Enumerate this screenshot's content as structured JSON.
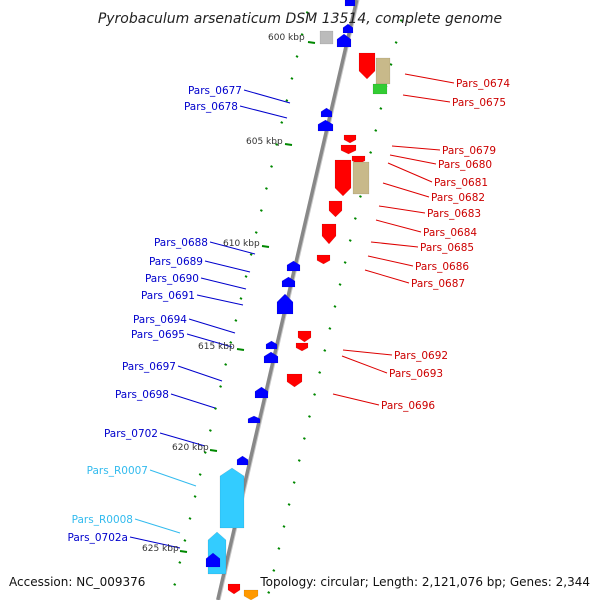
{
  "title": "Pyrobaculum arsenaticum DSM 13514, complete genome",
  "accession": "Accession: NC_009376",
  "topology": "Topology: circular; Length: 2,121,076 bp; Genes: 2,344",
  "colors": {
    "plus_gene": "#ff0000",
    "minus_gene": "#0000ff",
    "rna_gene": "#33ccff",
    "pseudo_gene": "#c8b98a",
    "green_gene": "#33cc33",
    "orange_gene": "#ff9900",
    "grey_gene": "#bbbbbb",
    "backbone": "#888888",
    "tick": "#008800"
  },
  "scale_labels": [
    "600 kbp",
    "605 kbp",
    "610 kbp",
    "615 kbp",
    "620 kbp",
    "625 kbp"
  ],
  "left_labels": [
    {
      "text": "Pars_0677",
      "kind": "minus"
    },
    {
      "text": "Pars_0678",
      "kind": "minus"
    },
    {
      "text": "Pars_0688",
      "kind": "minus"
    },
    {
      "text": "Pars_0689",
      "kind": "minus"
    },
    {
      "text": "Pars_0690",
      "kind": "minus"
    },
    {
      "text": "Pars_0691",
      "kind": "minus"
    },
    {
      "text": "Pars_0694",
      "kind": "minus"
    },
    {
      "text": "Pars_0695",
      "kind": "minus"
    },
    {
      "text": "Pars_0697",
      "kind": "minus"
    },
    {
      "text": "Pars_0698",
      "kind": "minus"
    },
    {
      "text": "Pars_0702",
      "kind": "minus"
    },
    {
      "text": "Pars_R0007",
      "kind": "rna"
    },
    {
      "text": "Pars_R0008",
      "kind": "rna"
    },
    {
      "text": "Pars_0702a",
      "kind": "minus"
    }
  ],
  "right_labels": [
    {
      "text": "Pars_0674",
      "kind": "plus"
    },
    {
      "text": "Pars_0675",
      "kind": "plus"
    },
    {
      "text": "Pars_0679",
      "kind": "plus"
    },
    {
      "text": "Pars_0680",
      "kind": "plus"
    },
    {
      "text": "Pars_0681",
      "kind": "plus"
    },
    {
      "text": "Pars_0682",
      "kind": "plus"
    },
    {
      "text": "Pars_0683",
      "kind": "plus"
    },
    {
      "text": "Pars_0684",
      "kind": "plus"
    },
    {
      "text": "Pars_0685",
      "kind": "plus"
    },
    {
      "text": "Pars_0686",
      "kind": "plus"
    },
    {
      "text": "Pars_0687",
      "kind": "plus"
    },
    {
      "text": "Pars_0692",
      "kind": "plus"
    },
    {
      "text": "Pars_0693",
      "kind": "plus"
    },
    {
      "text": "Pars_0696",
      "kind": "plus"
    }
  ]
}
